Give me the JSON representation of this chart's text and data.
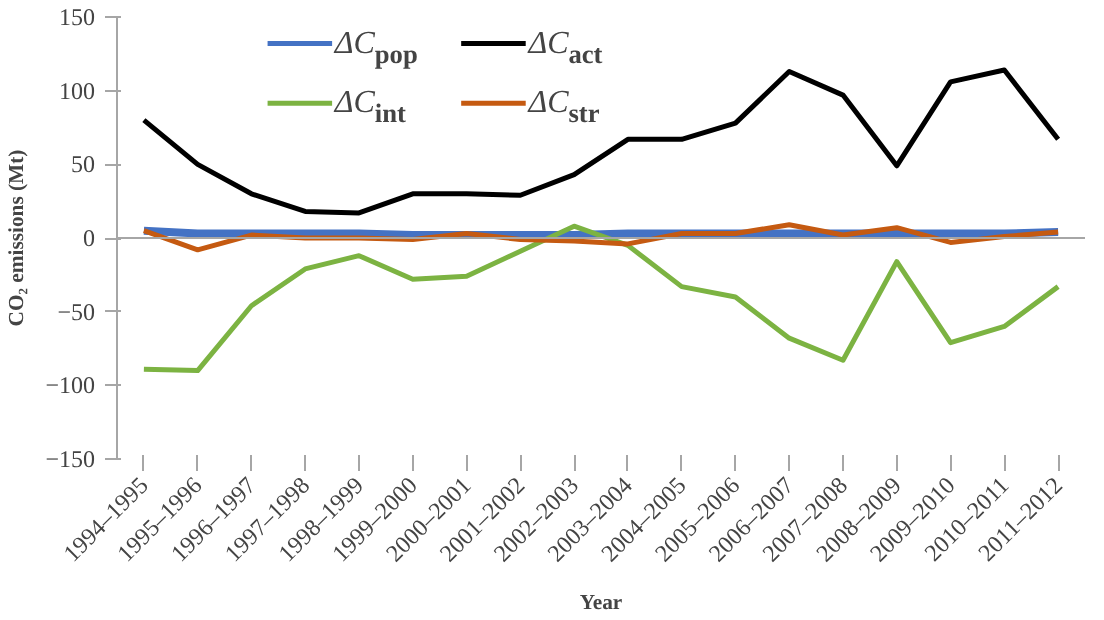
{
  "chart_data": {
    "type": "line",
    "xlabel": "Year",
    "ylabel": "CO₂ emissions (Mt)",
    "categories": [
      "1994–1995",
      "1995–1996",
      "1996–1997",
      "1997–1998",
      "1998–1999",
      "1999–2000",
      "2000–2001",
      "2001–2002",
      "2002–2003",
      "2003–2004",
      "2004–2005",
      "2005–2006",
      "2006–2007",
      "2007–2008",
      "2008–2009",
      "2009–2010",
      "2010–2011",
      "2011–2012"
    ],
    "series": [
      {
        "name": "ΔC$_{pop}$",
        "color": "#4472c4",
        "values": [
          5,
          3,
          3,
          3,
          3,
          2,
          2,
          2,
          2,
          3,
          3,
          3,
          3,
          3,
          3,
          3,
          3,
          4
        ]
      },
      {
        "name": "ΔC$_{act}$",
        "color": "#000000",
        "values": [
          80,
          50,
          30,
          18,
          17,
          30,
          30,
          29,
          43,
          67,
          67,
          78,
          113,
          97,
          49,
          106,
          114,
          67
        ]
      },
      {
        "name": "ΔC$_{int}$",
        "color": "#7cb342",
        "values": [
          -89,
          -90,
          -46,
          -21,
          -12,
          -28,
          -26,
          -9,
          8,
          -5,
          -33,
          -40,
          -68,
          -83,
          -16,
          -71,
          -60,
          -33
        ]
      },
      {
        "name": "ΔC$_{str}$",
        "color": "#c55a11",
        "values": [
          5,
          -8,
          2,
          0,
          0,
          -1,
          3,
          -1,
          -2,
          -4,
          3,
          3,
          9,
          2,
          7,
          -3,
          1,
          4
        ]
      }
    ],
    "ylim": [
      -150,
      150
    ],
    "yticks": [
      -150,
      -100,
      -50,
      0,
      50,
      100,
      150
    ],
    "ref_lines": [
      {
        "axis": "y",
        "value": 0,
        "color": "#a6a6a6"
      }
    ],
    "grid": false,
    "legend": "top",
    "marker": "none",
    "line_style": "solid"
  }
}
